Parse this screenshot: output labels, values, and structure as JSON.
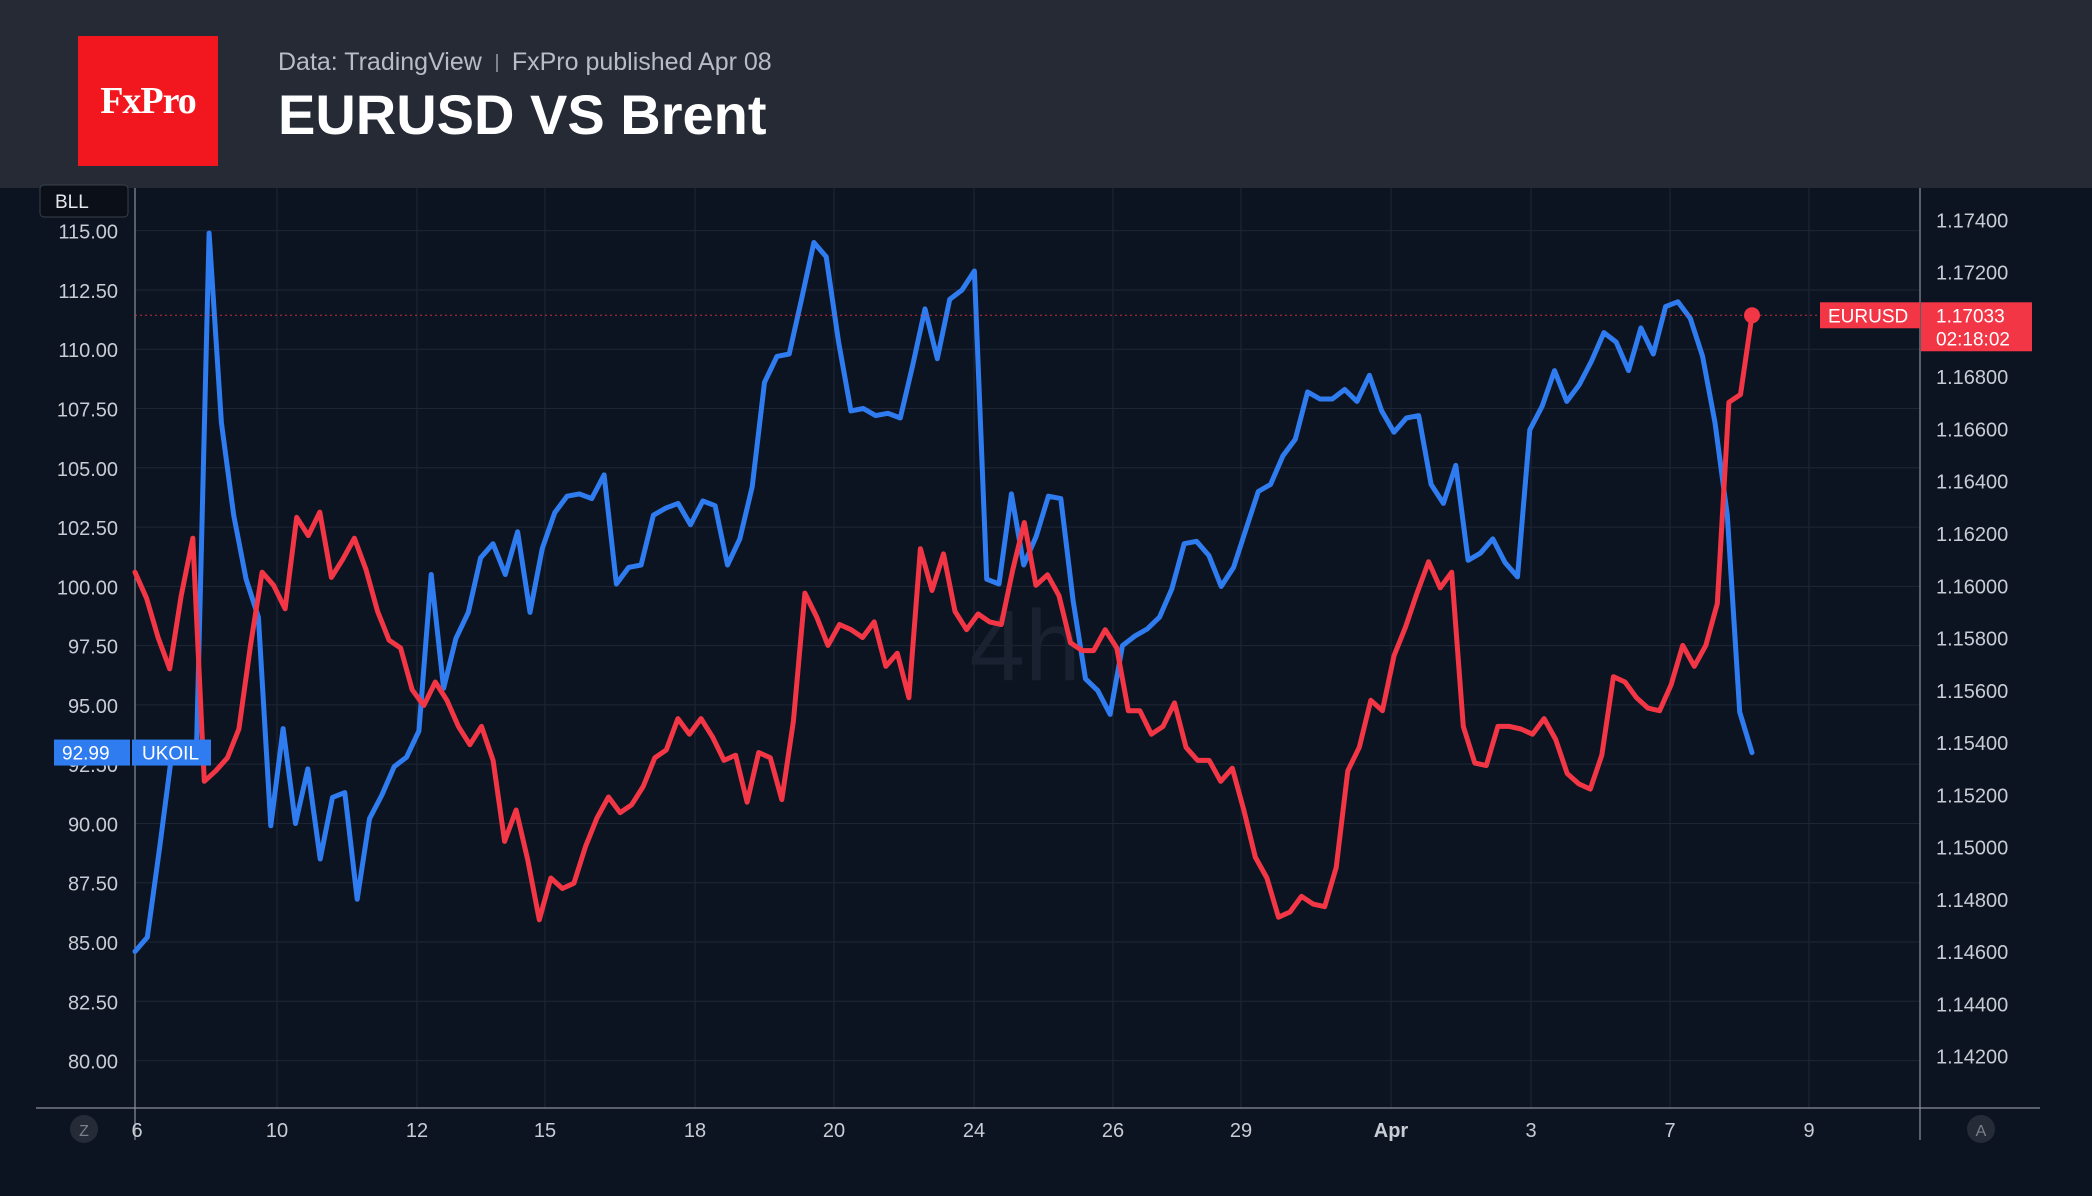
{
  "header": {
    "logo_text": "FxPro",
    "source": "Data: TradingView",
    "published": "FxPro published Apr 08",
    "title": "EURUSD VS Brent"
  },
  "chart_data": {
    "type": "line",
    "timeframe_watermark": "4h",
    "left_scale_tag": "BLL",
    "time_axis": {
      "ticks": [
        "6",
        "10",
        "12",
        "15",
        "18",
        "20",
        "24",
        "26",
        "29",
        "Apr",
        "3",
        "7",
        "9"
      ],
      "scale_button_left": "Z",
      "scale_button_right": "A"
    },
    "left_axis": {
      "ticks": [
        "80.00",
        "82.50",
        "85.00",
        "87.50",
        "90.00",
        "92.50",
        "95.00",
        "97.50",
        "100.00",
        "102.50",
        "105.00",
        "107.50",
        "110.00",
        "112.50",
        "115.00"
      ],
      "ylim": [
        78.0,
        116.8
      ]
    },
    "right_axis": {
      "ticks": [
        "1.14200",
        "1.14400",
        "1.14600",
        "1.14800",
        "1.15000",
        "1.15200",
        "1.15400",
        "1.15600",
        "1.15800",
        "1.16000",
        "1.16200",
        "1.16400",
        "1.16600",
        "1.16800",
        "1.17200",
        "1.17400"
      ],
      "ylim": [
        1.14,
        1.1752
      ]
    },
    "grid": true,
    "series": [
      {
        "name": "UKOIL",
        "axis": "left",
        "color": "#2f7cf0",
        "last_value": "92.99",
        "values": [
          84.6,
          85.2,
          89,
          93,
          92.6,
          93.5,
          114.9,
          106.9,
          103,
          100.3,
          98.7,
          89.9,
          94,
          90,
          92.3,
          88.5,
          91.1,
          91.3,
          86.8,
          90.2,
          91.2,
          92.4,
          92.8,
          93.9,
          100.5,
          95.7,
          97.8,
          98.9,
          101.2,
          101.8,
          100.5,
          102.3,
          98.9,
          101.6,
          103.1,
          103.8,
          103.9,
          103.7,
          104.7,
          100.1,
          100.8,
          100.9,
          103.0,
          103.3,
          103.5,
          102.6,
          103.6,
          103.4,
          100.9,
          102.0,
          104.2,
          108.6,
          109.7,
          109.8,
          112.1,
          114.5,
          113.9,
          110.3,
          107.4,
          107.5,
          107.2,
          107.3,
          107.1,
          109.3,
          111.7,
          109.6,
          112.1,
          112.5,
          113.3,
          100.3,
          100.1,
          103.9,
          100.9,
          102.1,
          103.8,
          103.7,
          99.4,
          96.1,
          95.6,
          94.6,
          97.5,
          97.9,
          98.2,
          98.7,
          99.9,
          101.8,
          101.9,
          101.3,
          100.0,
          100.8,
          102.4,
          104.0,
          104.3,
          105.5,
          106.2,
          108.2,
          107.9,
          107.9,
          108.3,
          107.8,
          108.9,
          107.4,
          106.5,
          107.1,
          107.2,
          104.3,
          103.5,
          105.1,
          101.1,
          101.4,
          102.0,
          101.0,
          100.4,
          106.6,
          107.6,
          109.1,
          107.8,
          108.5,
          109.5,
          110.7,
          110.3,
          109.1,
          110.9,
          109.8,
          111.8,
          112.0,
          111.3,
          109.7,
          106.9,
          103.0,
          94.7,
          92.99
        ]
      },
      {
        "name": "EURUSD",
        "axis": "right",
        "color": "#f23645",
        "last_value": "1.17033",
        "countdown": "02:18:02",
        "values": [
          1.1605,
          1.1595,
          1.158,
          1.1568,
          1.1596,
          1.1618,
          1.1525,
          1.1529,
          1.1534,
          1.1545,
          1.1577,
          1.1605,
          1.16,
          1.1591,
          1.1626,
          1.1619,
          1.1628,
          1.1603,
          1.161,
          1.1618,
          1.1606,
          1.159,
          1.1579,
          1.1576,
          1.156,
          1.1554,
          1.1563,
          1.1556,
          1.1546,
          1.1539,
          1.1546,
          1.1533,
          1.1502,
          1.1514,
          1.1495,
          1.1472,
          1.1488,
          1.1484,
          1.1486,
          1.15,
          1.1511,
          1.1519,
          1.1513,
          1.1516,
          1.1523,
          1.1534,
          1.1537,
          1.1549,
          1.1543,
          1.1549,
          1.1542,
          1.1533,
          1.1535,
          1.1517,
          1.1536,
          1.1534,
          1.1518,
          1.1548,
          1.1597,
          1.1588,
          1.1577,
          1.1585,
          1.1583,
          1.158,
          1.1586,
          1.1569,
          1.1574,
          1.1557,
          1.1614,
          1.1598,
          1.1612,
          1.159,
          1.1583,
          1.1589,
          1.1586,
          1.1585,
          1.1606,
          1.1624,
          1.16,
          1.1604,
          1.1596,
          1.1578,
          1.1575,
          1.1575,
          1.1583,
          1.1576,
          1.1552,
          1.1552,
          1.1543,
          1.1546,
          1.1555,
          1.1538,
          1.1533,
          1.1533,
          1.1525,
          1.153,
          1.1514,
          1.1496,
          1.1488,
          1.1473,
          1.1475,
          1.1481,
          1.1478,
          1.1477,
          1.1492,
          1.1529,
          1.1538,
          1.1556,
          1.1552,
          1.1573,
          1.1584,
          1.1597,
          1.1609,
          1.1599,
          1.1605,
          1.1546,
          1.1532,
          1.1531,
          1.1546,
          1.1546,
          1.1545,
          1.1543,
          1.1549,
          1.1541,
          1.1528,
          1.1524,
          1.1522,
          1.1535,
          1.1565,
          1.1563,
          1.1557,
          1.1553,
          1.1552,
          1.1562,
          1.1577,
          1.1569,
          1.1577,
          1.1593,
          1.167,
          1.1673,
          1.17033
        ]
      }
    ]
  }
}
